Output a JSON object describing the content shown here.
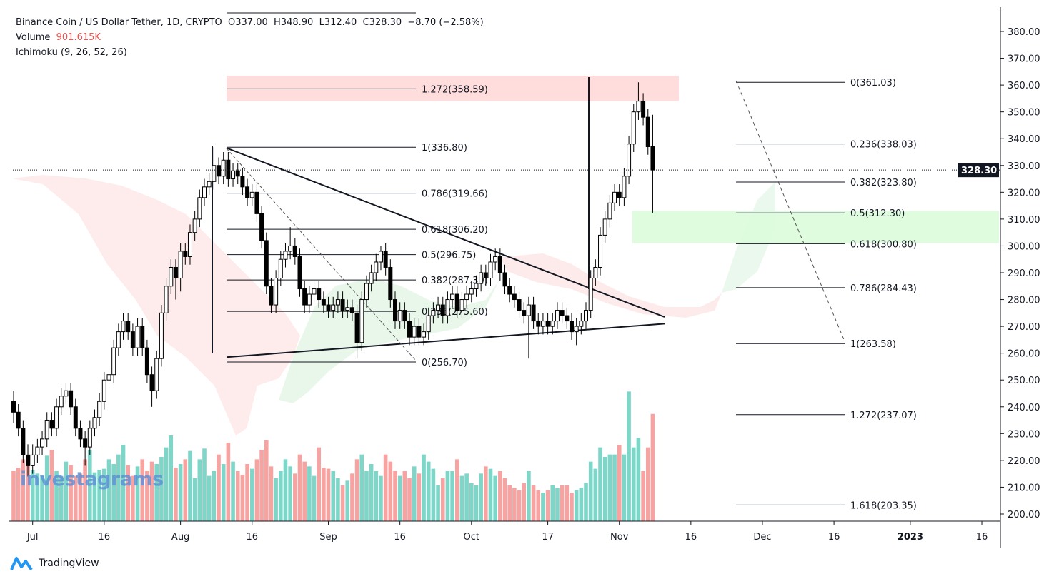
{
  "header": {
    "symbol": "Binance Coin / US Dollar Tether, 1D, CRYPTO",
    "open": "O337.00",
    "high": "H348.90",
    "low": "L312.40",
    "close": "C328.30",
    "change": "−8.70 (−2.58%)",
    "volume_label": "Volume",
    "volume_value": "901.615K",
    "ichimoku": "Ichimoku (9, 26, 52, 26)"
  },
  "brand": {
    "name": "TradingView",
    "watermark": "investagrams"
  },
  "colors": {
    "up_volume": "#7dd6c8",
    "down_volume": "#f7a3a1",
    "volume_text": "#ef5350",
    "resistance_zone": "#ffd9d9",
    "support_zone": "#dcfcdc",
    "cloud_bear": "#fde5e5",
    "cloud_bull": "#e3f5e6"
  },
  "chart_data": {
    "type": "candlestick",
    "start_date": "2022-06-27",
    "price_axis": {
      "min": 200,
      "max": 380,
      "ticks": [
        "380.00",
        "370.00",
        "360.00",
        "350.00",
        "340.00",
        "330.00",
        "320.00",
        "310.00",
        "300.00",
        "290.00",
        "280.00",
        "270.00",
        "260.00",
        "250.00",
        "240.00",
        "230.00",
        "220.00",
        "210.00",
        "200.00"
      ],
      "last_price": "328.30"
    },
    "time_axis": [
      {
        "label": "Jul",
        "date": "2022-07-01"
      },
      {
        "label": "16",
        "date": "2022-07-16"
      },
      {
        "label": "Aug",
        "date": "2022-08-01"
      },
      {
        "label": "16",
        "date": "2022-08-16"
      },
      {
        "label": "Sep",
        "date": "2022-09-01"
      },
      {
        "label": "16",
        "date": "2022-09-16"
      },
      {
        "label": "Oct",
        "date": "2022-10-01"
      },
      {
        "label": "17",
        "date": "2022-10-17"
      },
      {
        "label": "Nov",
        "date": "2022-11-01"
      },
      {
        "label": "16",
        "date": "2022-11-16"
      },
      {
        "label": "Dec",
        "date": "2022-12-01"
      },
      {
        "label": "16",
        "date": "2022-12-16"
      },
      {
        "label": "2023",
        "date": "2023-01-01",
        "bold": true
      },
      {
        "label": "16",
        "date": "2023-01-16"
      }
    ],
    "ohlc": [
      [
        242,
        246,
        234,
        238
      ],
      [
        238,
        241,
        229,
        232
      ],
      [
        232,
        235,
        219,
        222
      ],
      [
        222,
        226,
        214,
        218
      ],
      [
        218,
        226,
        215,
        222
      ],
      [
        222,
        228,
        219,
        225
      ],
      [
        225,
        231,
        222,
        228
      ],
      [
        228,
        238,
        225,
        235
      ],
      [
        235,
        238,
        229,
        232
      ],
      [
        232,
        243,
        229,
        240
      ],
      [
        240,
        247,
        237,
        244
      ],
      [
        244,
        249,
        241,
        246
      ],
      [
        246,
        249,
        237,
        240
      ],
      [
        240,
        243,
        229,
        232
      ],
      [
        232,
        235,
        225,
        228
      ],
      [
        228,
        231,
        218,
        225
      ],
      [
        225,
        235,
        222,
        232
      ],
      [
        232,
        239,
        229,
        236
      ],
      [
        236,
        245,
        233,
        242
      ],
      [
        242,
        253,
        239,
        250
      ],
      [
        250,
        255,
        247,
        252
      ],
      [
        252,
        265,
        249,
        262
      ],
      [
        262,
        271,
        259,
        268
      ],
      [
        268,
        275,
        265,
        272
      ],
      [
        272,
        275,
        265,
        268
      ],
      [
        268,
        271,
        259,
        262
      ],
      [
        262,
        273,
        259,
        270
      ],
      [
        270,
        273,
        259,
        262
      ],
      [
        262,
        265,
        249,
        252
      ],
      [
        252,
        255,
        240,
        246
      ],
      [
        246,
        261,
        243,
        258
      ],
      [
        258,
        278,
        255,
        275
      ],
      [
        275,
        288,
        272,
        285
      ],
      [
        285,
        295,
        282,
        292
      ],
      [
        292,
        295,
        280,
        288
      ],
      [
        288,
        301,
        283,
        298
      ],
      [
        298,
        301,
        293,
        296
      ],
      [
        296,
        308,
        293,
        305
      ],
      [
        305,
        313,
        302,
        310
      ],
      [
        310,
        321,
        307,
        318
      ],
      [
        318,
        325,
        315,
        322
      ],
      [
        322,
        327,
        319,
        324
      ],
      [
        324,
        336.8,
        321,
        330
      ],
      [
        330,
        333,
        323,
        326
      ],
      [
        326,
        335,
        323,
        332
      ],
      [
        332,
        335,
        322,
        325
      ],
      [
        325,
        331,
        322,
        328
      ],
      [
        328,
        331,
        323,
        326
      ],
      [
        326,
        329,
        319,
        322
      ],
      [
        322,
        325,
        315,
        318
      ],
      [
        318,
        323,
        315,
        320
      ],
      [
        320,
        323,
        309,
        312
      ],
      [
        312,
        315,
        299,
        302
      ],
      [
        302,
        305,
        282,
        285
      ],
      [
        285,
        288,
        275,
        278
      ],
      [
        278,
        291,
        275,
        288
      ],
      [
        288,
        298,
        285,
        295
      ],
      [
        295,
        301,
        292,
        298
      ],
      [
        298,
        307,
        295,
        300
      ],
      [
        300,
        303,
        293,
        296
      ],
      [
        296,
        299,
        281,
        284
      ],
      [
        284,
        287,
        275,
        278
      ],
      [
        278,
        285,
        275,
        282
      ],
      [
        282,
        287,
        279,
        284
      ],
      [
        284,
        287,
        277,
        280
      ],
      [
        280,
        283,
        275,
        278
      ],
      [
        278,
        281,
        273,
        276
      ],
      [
        276,
        281,
        273,
        278
      ],
      [
        278,
        283,
        275,
        280
      ],
      [
        280,
        283,
        273,
        276
      ],
      [
        276,
        280,
        273,
        277
      ],
      [
        277,
        280,
        272,
        275
      ],
      [
        275,
        278,
        258,
        264
      ],
      [
        264,
        283,
        261,
        280
      ],
      [
        280,
        289,
        277,
        286
      ],
      [
        286,
        293,
        283,
        290
      ],
      [
        290,
        297,
        287,
        294
      ],
      [
        294,
        300,
        291,
        298
      ],
      [
        298,
        301,
        289,
        292
      ],
      [
        292,
        295,
        277,
        280
      ],
      [
        280,
        283,
        269,
        272
      ],
      [
        272,
        279,
        269,
        276
      ],
      [
        276,
        279,
        269,
        272
      ],
      [
        272,
        275,
        263,
        266
      ],
      [
        266,
        273,
        263,
        270
      ],
      [
        270,
        273,
        263,
        266
      ],
      [
        266,
        271,
        263,
        268
      ],
      [
        268,
        277,
        265,
        274
      ],
      [
        274,
        279,
        271,
        276
      ],
      [
        276,
        281,
        273,
        278
      ],
      [
        278,
        281,
        271,
        274
      ],
      [
        274,
        283,
        271,
        280
      ],
      [
        280,
        285,
        277,
        282
      ],
      [
        282,
        285,
        273,
        276
      ],
      [
        276,
        283,
        273,
        280
      ],
      [
        280,
        285,
        277,
        282
      ],
      [
        282,
        287,
        279,
        284
      ],
      [
        284,
        289,
        281,
        286
      ],
      [
        286,
        293,
        283,
        290
      ],
      [
        290,
        293,
        285,
        288
      ],
      [
        288,
        297,
        285,
        294
      ],
      [
        294,
        299,
        291,
        296
      ],
      [
        296,
        299,
        287,
        290
      ],
      [
        290,
        293,
        282,
        285
      ],
      [
        285,
        288,
        279,
        282
      ],
      [
        282,
        285,
        277,
        280
      ],
      [
        280,
        283,
        273,
        276
      ],
      [
        276,
        279,
        271,
        274
      ],
      [
        274,
        281,
        258,
        278
      ],
      [
        278,
        281,
        269,
        272
      ],
      [
        272,
        275,
        267,
        270
      ],
      [
        270,
        275,
        267,
        272
      ],
      [
        272,
        275,
        267,
        270
      ],
      [
        270,
        275,
        267,
        272
      ],
      [
        272,
        279,
        269,
        276
      ],
      [
        276,
        279,
        271,
        274
      ],
      [
        274,
        277,
        269,
        272
      ],
      [
        272,
        275,
        265,
        268
      ],
      [
        268,
        273,
        263,
        270
      ],
      [
        270,
        275,
        267,
        272
      ],
      [
        272,
        279,
        269,
        276
      ],
      [
        276,
        291,
        273,
        288
      ],
      [
        288,
        295,
        285,
        292
      ],
      [
        292,
        307,
        289,
        304
      ],
      [
        304,
        313,
        301,
        310
      ],
      [
        310,
        319,
        307,
        316
      ],
      [
        316,
        323,
        313,
        320
      ],
      [
        320,
        323,
        315,
        318
      ],
      [
        318,
        329,
        315,
        326
      ],
      [
        326,
        341,
        323,
        338
      ],
      [
        338,
        353,
        335,
        350
      ],
      [
        350,
        361.03,
        347,
        354
      ],
      [
        354,
        357,
        345,
        348
      ],
      [
        348,
        351,
        334,
        337
      ],
      [
        337,
        348.9,
        312.4,
        328.3
      ]
    ],
    "volume_k": [
      420,
      450,
      520,
      480,
      430,
      400,
      380,
      550,
      600,
      420,
      380,
      500,
      470,
      380,
      400,
      520,
      600,
      410,
      430,
      440,
      520,
      480,
      560,
      640,
      470,
      380,
      460,
      520,
      420,
      500,
      480,
      540,
      620,
      720,
      450,
      480,
      520,
      590,
      360,
      520,
      610,
      380,
      420,
      560,
      480,
      660,
      500,
      420,
      390,
      480,
      440,
      520,
      600,
      680,
      460,
      360,
      420,
      520,
      460,
      400,
      560,
      500,
      460,
      380,
      620,
      450,
      440,
      420,
      360,
      300,
      340,
      400,
      520,
      560,
      420,
      480,
      420,
      380,
      560,
      500,
      420,
      380,
      420,
      360,
      460,
      400,
      560,
      500,
      440,
      300,
      360,
      420,
      420,
      520,
      380,
      400,
      320,
      300,
      400,
      460,
      440,
      380,
      420,
      360,
      300,
      280,
      260,
      320,
      420,
      300,
      260,
      240,
      260,
      300,
      280,
      300,
      300,
      240,
      260,
      280,
      320,
      500,
      440,
      620,
      540,
      560,
      560,
      640,
      560,
      1090,
      620,
      700,
      420,
      620,
      901.615
    ],
    "fib_retracement_left": {
      "from_date": "2022-08-08",
      "to_date": "2022-09-20",
      "levels": [
        {
          "label": "1.272(358.59)",
          "price": 358.59
        },
        {
          "label": "1(336.80)",
          "price": 336.8
        },
        {
          "label": "0.786(319.66)",
          "price": 319.66
        },
        {
          "label": "0.618(306.20)",
          "price": 306.2
        },
        {
          "label": "0.5(296.75)",
          "price": 296.75
        },
        {
          "label": "0.382(287.30)",
          "price": 287.3
        },
        {
          "label": "0.236(275.60)",
          "price": 275.6
        },
        {
          "label": "0(256.70)",
          "price": 256.7
        }
      ]
    },
    "fib_retracement_right": {
      "from_date": "2022-11-30",
      "to_date": "2022-12-22",
      "levels": [
        {
          "label": "0(361.03)",
          "price": 361.03
        },
        {
          "label": "0.236(338.03)",
          "price": 338.03
        },
        {
          "label": "0.382(323.80)",
          "price": 323.8
        },
        {
          "label": "0.5(312.30)",
          "price": 312.3
        },
        {
          "label": "0.618(300.80)",
          "price": 300.8
        },
        {
          "label": "0.786(284.43)",
          "price": 284.43
        },
        {
          "label": "1(263.58)",
          "price": 263.58
        },
        {
          "label": "1.272(237.07)",
          "price": 237.07
        },
        {
          "label": "1.618(203.35)",
          "price": 203.35
        }
      ]
    },
    "zones": [
      {
        "type": "resistance",
        "from_price": 354,
        "to_price": 363.5,
        "from_date": "2022-08-08",
        "to_date": "2022-11-13"
      },
      {
        "type": "support",
        "from_price": 301,
        "to_price": 313,
        "from_date": "2022-11-04",
        "to_date": "2023-01-18"
      }
    ],
    "trendlines": [
      {
        "name": "triangle-upper",
        "from": [
          "2022-08-08",
          336.5
        ],
        "to": [
          "2022-11-10",
          273.5
        ]
      },
      {
        "name": "triangle-lower",
        "from": [
          "2022-08-08",
          258.5
        ],
        "to": [
          "2022-11-10",
          271
        ]
      }
    ]
  }
}
